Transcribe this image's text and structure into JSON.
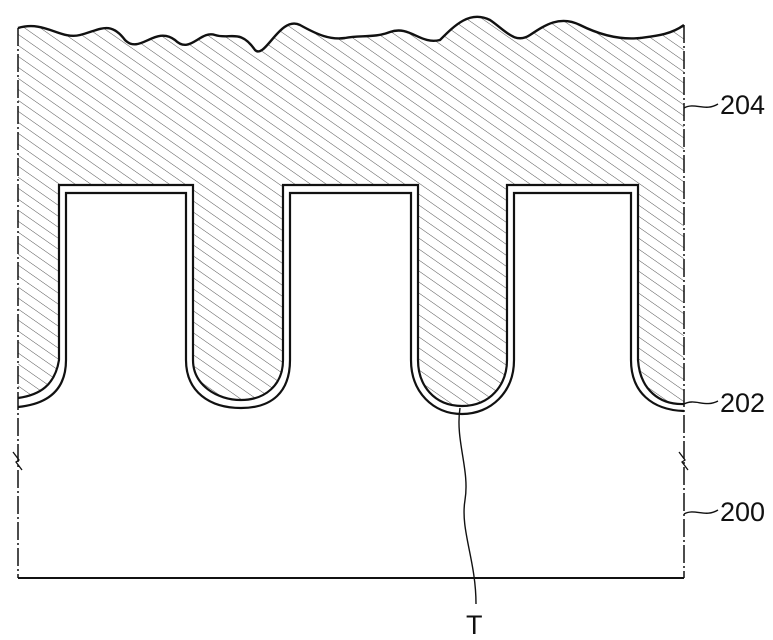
{
  "labels": {
    "layer_204": "204",
    "liner_202": "202",
    "substrate_200": "200",
    "trench_T": "T"
  },
  "colors": {
    "ink": "#111111",
    "background": "#ffffff",
    "hatch": "#444444"
  }
}
